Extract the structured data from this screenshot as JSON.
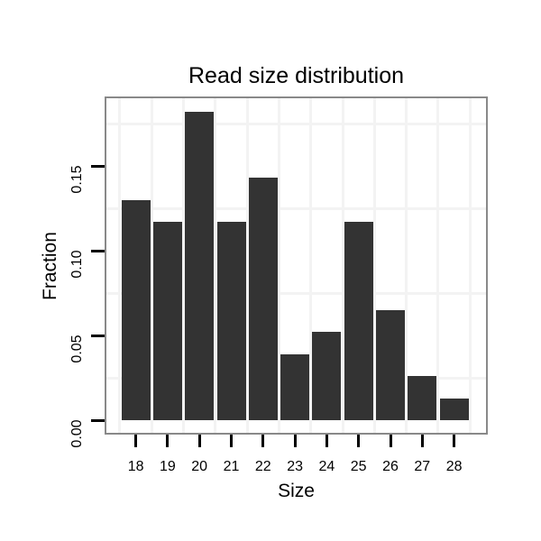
{
  "figure": {
    "background": "#ffffff"
  },
  "chart_data": {
    "type": "bar",
    "title": "Read size distribution",
    "xlabel": "Size",
    "ylabel": "Fraction",
    "categories": [
      "18",
      "19",
      "20",
      "21",
      "22",
      "23",
      "24",
      "25",
      "26",
      "27",
      "28"
    ],
    "values": [
      0.1299,
      0.1169,
      0.1818,
      0.1169,
      0.1429,
      0.039,
      0.0519,
      0.1169,
      0.0649,
      0.026,
      0.013
    ],
    "y_ticks": {
      "values": [
        0,
        0.05,
        0.1,
        0.15
      ],
      "labels": [
        "0.00",
        "0.05",
        "0.10",
        "0.15"
      ]
    },
    "ylim": [
      0,
      0.19
    ],
    "grid": {
      "horizontal_minor_values": [
        0.025,
        0.075,
        0.125,
        0.175
      ],
      "vertical": "between-bars",
      "gridline_color": "#f3f3f3"
    },
    "legend_position": "none",
    "bar_color": "#333333",
    "panel_border_color": "#898989",
    "tick_color": "#000000",
    "text_color": "#000000"
  }
}
